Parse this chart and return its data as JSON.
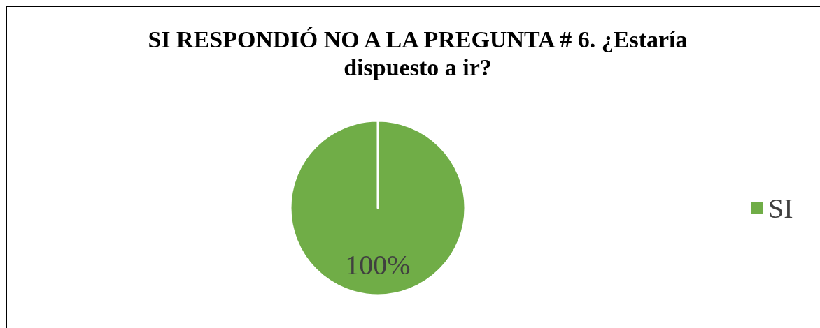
{
  "chart_data": {
    "type": "pie",
    "title": "SI RESPONDIÓ NO A LA PREGUNTA # 6. ¿Estaría dispuesto a ir?",
    "categories": [
      "SI"
    ],
    "values": [
      100
    ],
    "colors": [
      "#70ad47"
    ],
    "value_labels": [
      "100%"
    ],
    "legend": "right"
  }
}
